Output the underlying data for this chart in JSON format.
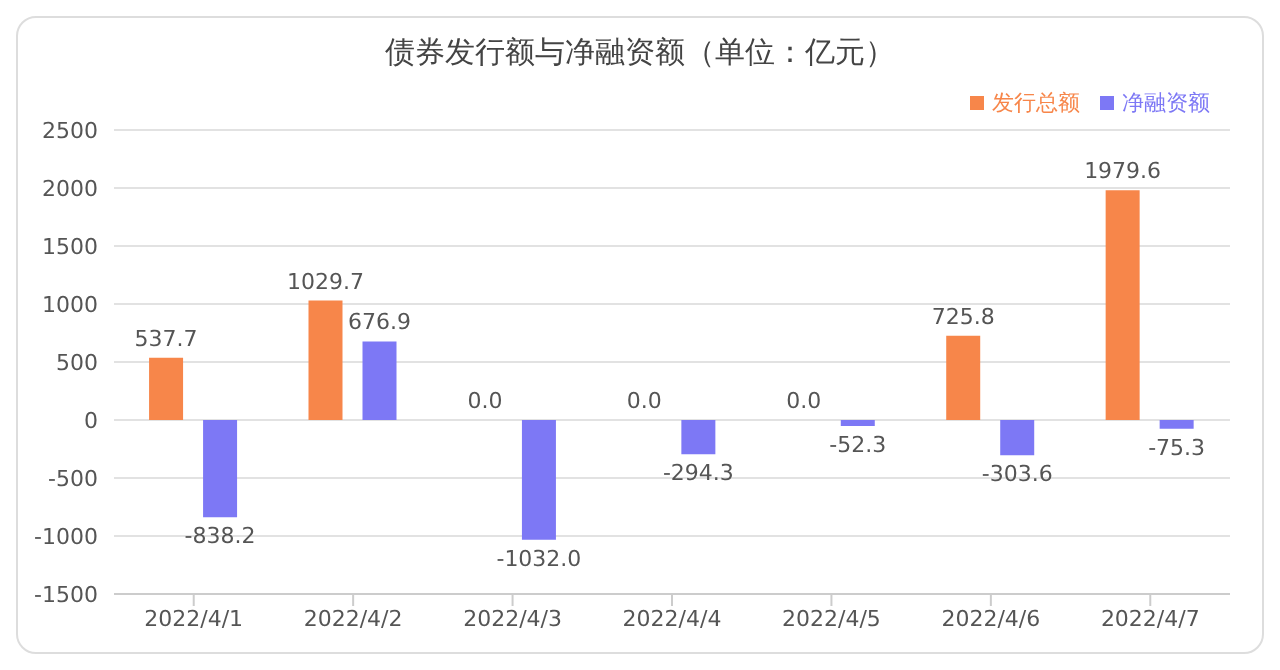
{
  "chart_data": {
    "type": "bar",
    "title": "债券发行额与净融资额（单位：亿元）",
    "categories": [
      "2022/4/1",
      "2022/4/2",
      "2022/4/3",
      "2022/4/4",
      "2022/4/5",
      "2022/4/6",
      "2022/4/7"
    ],
    "series": [
      {
        "name": "发行总额",
        "color": "#f7864a",
        "values": [
          537.7,
          1029.7,
          0,
          0,
          0,
          725.8,
          1979.6
        ],
        "value_labels": [
          "537.7",
          "1029.7",
          "0.0",
          "0.0",
          "0.0",
          "725.8",
          "1979.6"
        ]
      },
      {
        "name": "净融资额",
        "color": "#7d78f5",
        "values": [
          -838.2,
          676.9,
          -1032,
          -294.3,
          -52.3,
          -303.6,
          -75.3
        ],
        "value_labels": [
          "-838.2",
          "676.9",
          "-1032.0",
          "-294.3",
          "-52.3",
          "-303.6",
          "-75.3"
        ]
      }
    ],
    "ylim": [
      -1500,
      2500
    ],
    "yticks": [
      -1500,
      -1000,
      -500,
      0,
      500,
      1000,
      1500,
      2000,
      2500
    ],
    "grid": "y",
    "legend": "top right"
  }
}
